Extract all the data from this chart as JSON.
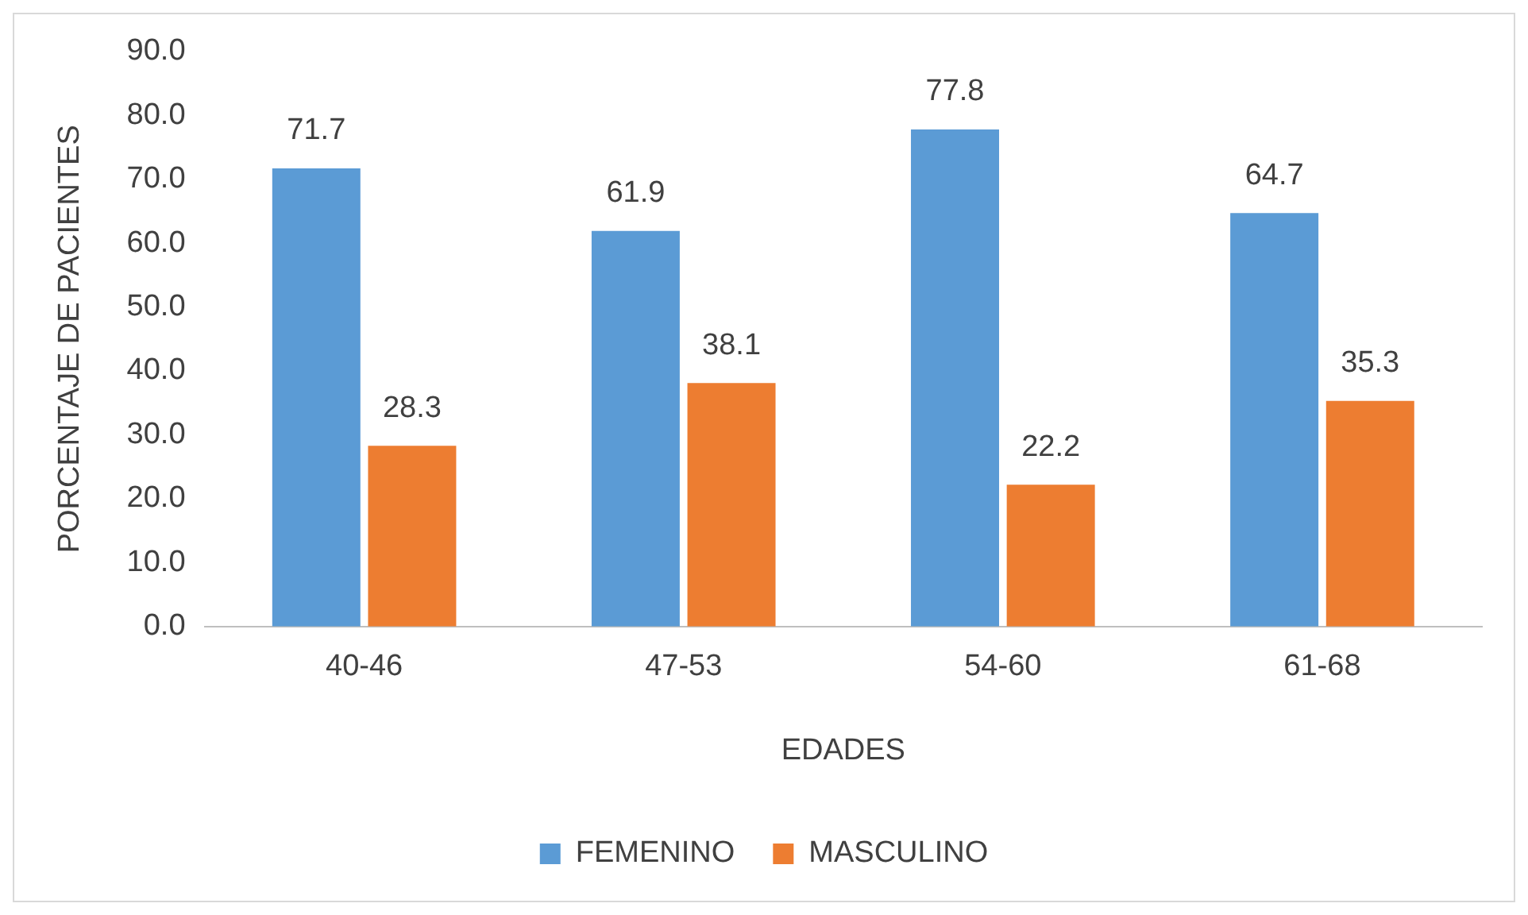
{
  "chart_data": {
    "type": "bar",
    "xlabel": "EDADES",
    "ylabel": "PORCENTAJE DE PACIENTES",
    "categories": [
      "40-46",
      "47-53",
      "54-60",
      "61-68"
    ],
    "series": [
      {
        "name": "FEMENINO",
        "color": "#5b9bd5",
        "values": [
          71.7,
          61.9,
          77.8,
          64.7
        ]
      },
      {
        "name": "MASCULINO",
        "color": "#ed7d31",
        "values": [
          28.3,
          38.1,
          22.2,
          35.3
        ]
      }
    ],
    "ylim": [
      0,
      90
    ],
    "yticks": [
      {
        "value": 0,
        "label": "0.0"
      },
      {
        "value": 10,
        "label": "10.0"
      },
      {
        "value": 20,
        "label": "20.0"
      },
      {
        "value": 30,
        "label": "30.0"
      },
      {
        "value": 40,
        "label": "40.0"
      },
      {
        "value": 50,
        "label": "50.0"
      },
      {
        "value": 60,
        "label": "60.0"
      },
      {
        "value": 70,
        "label": "70.0"
      },
      {
        "value": 80,
        "label": "80.0"
      },
      {
        "value": 90,
        "label": "90.0"
      }
    ],
    "grid": false,
    "legend": "bottom",
    "data_labels": true
  }
}
